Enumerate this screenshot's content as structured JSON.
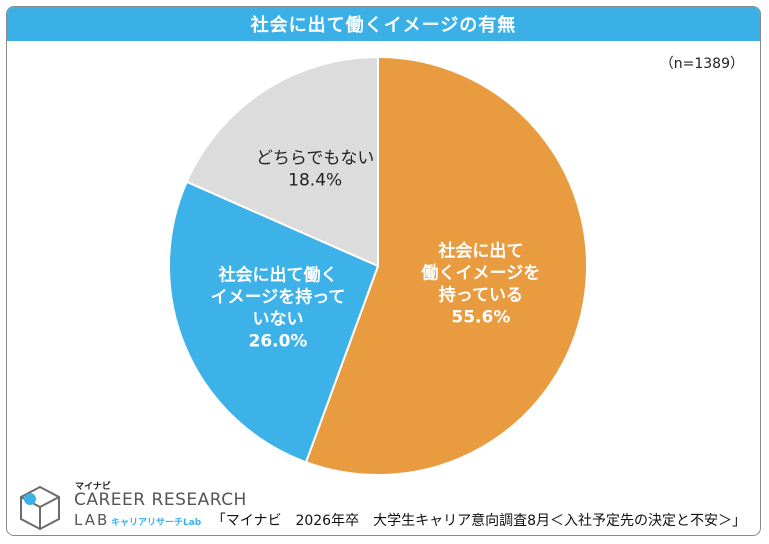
{
  "title": "社会に出て働くイメージの有無",
  "sample_note": "（n=1389）",
  "source": "「マイナビ　2026年卒　大学生キャリア意向調査8月＜入社予定先の決定と不安＞」",
  "logo": {
    "brand": "マイナビ",
    "line1": "CAREER RESEARCH",
    "line2": "LAB",
    "sub": "キャリアリサーチLab"
  },
  "chart_data": {
    "type": "pie",
    "title": "社会に出て働くイメージの有無",
    "slices": [
      {
        "label_lines": [
          "社会に出て",
          "働くイメージを",
          "持っている"
        ],
        "value": 55.6,
        "value_label": "55.6%",
        "color": "#e99b40",
        "text_color": "#ffffff"
      },
      {
        "label_lines": [
          "社会に出て働く",
          "イメージを持って",
          "いない"
        ],
        "value": 26.0,
        "value_label": "26.0%",
        "color": "#3db2e8",
        "text_color": "#ffffff"
      },
      {
        "label_lines": [
          "どちらでもない"
        ],
        "value": 18.4,
        "value_label": "18.4%",
        "color": "#dcdcdc",
        "text_color": "#222222"
      }
    ],
    "start": "12 o'clock",
    "direction": "clockwise"
  }
}
